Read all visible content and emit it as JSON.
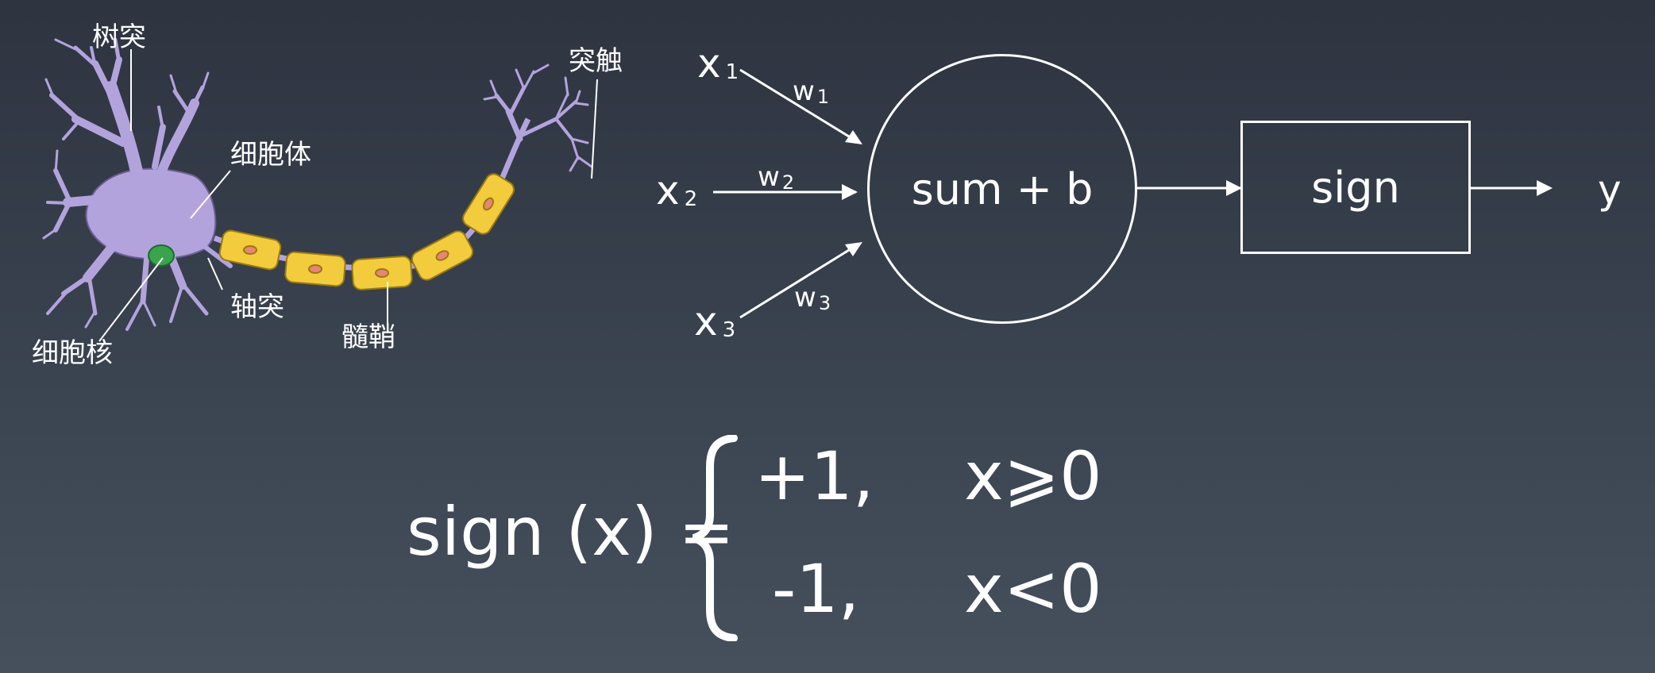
{
  "neuron": {
    "labels": {
      "dendrite": "树突",
      "synapse": "突触",
      "soma": "细胞体",
      "axon": "轴突",
      "nucleus": "细胞核",
      "myelin": "髓鞘"
    },
    "colors": {
      "cell_body": "#b3a3dd",
      "myelin": "#f2cc3c",
      "myelin_node": "#e98478",
      "nucleus": "#3aa44c"
    }
  },
  "perceptron": {
    "inputs": [
      {
        "name": "x",
        "sub": "1"
      },
      {
        "name": "x",
        "sub": "2"
      },
      {
        "name": "x",
        "sub": "3"
      }
    ],
    "weights": [
      {
        "name": "w",
        "sub": "1"
      },
      {
        "name": "w",
        "sub": "2"
      },
      {
        "name": "w",
        "sub": "3"
      }
    ],
    "sum_node": "sum + b",
    "activation": "sign",
    "output": "y"
  },
  "formula": {
    "lhs": "sign (x) =",
    "cases": [
      {
        "value": "+1,",
        "condition": "x⩾0"
      },
      {
        "value": "-1,",
        "condition": "x<0"
      }
    ]
  }
}
